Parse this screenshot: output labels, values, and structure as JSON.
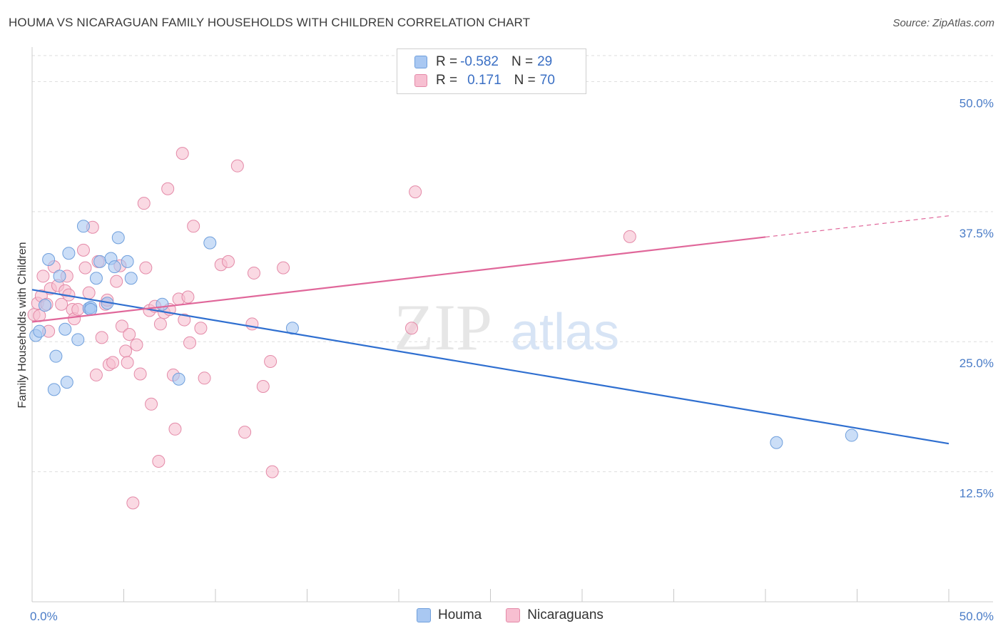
{
  "title": "HOUMA VS NICARAGUAN FAMILY HOUSEHOLDS WITH CHILDREN CORRELATION CHART",
  "source": "Source: ZipAtlas.com",
  "watermark": {
    "part1": "ZIP",
    "part2": "atlas"
  },
  "legend": {
    "r_label": "R =",
    "n_label": "N =",
    "rows": [
      {
        "r": "-0.582",
        "n": "29",
        "color": "#a9c8f2",
        "border": "#6f9fdc"
      },
      {
        "r": "0.171",
        "n": "70",
        "color": "#f7bfd1",
        "border": "#e48aa8"
      }
    ]
  },
  "bottom_legend": [
    "Houma",
    "Nicaraguans"
  ],
  "chart_data": {
    "type": "scatter",
    "title": "HOUMA VS NICARAGUAN FAMILY HOUSEHOLDS WITH CHILDREN CORRELATION CHART",
    "xlabel": "",
    "ylabel": "Family Households with Children",
    "xlim": [
      0,
      50
    ],
    "ylim": [
      0,
      52.5
    ],
    "x_tick_labels": [
      "0.0%",
      "50.0%"
    ],
    "y_ticks": [
      12.5,
      25.0,
      37.5,
      50.0
    ],
    "y_tick_labels": [
      "12.5%",
      "25.0%",
      "37.5%",
      "50.0%"
    ],
    "grid": true,
    "series": [
      {
        "name": "Houma",
        "color": "#a9c8f2",
        "edge": "#6f9fdc",
        "line_color": "#2f6fd0",
        "trend": {
          "x0": 0,
          "y0": 30.0,
          "x1": 50,
          "y1": 15.2,
          "solid_until": 50
        },
        "points": [
          [
            0.2,
            25.6
          ],
          [
            0.4,
            26.0
          ],
          [
            0.7,
            28.5
          ],
          [
            0.9,
            32.9
          ],
          [
            1.3,
            23.6
          ],
          [
            1.5,
            31.3
          ],
          [
            1.8,
            26.2
          ],
          [
            1.9,
            21.1
          ],
          [
            2.0,
            33.5
          ],
          [
            2.5,
            25.2
          ],
          [
            2.8,
            36.1
          ],
          [
            3.1,
            28.2
          ],
          [
            3.2,
            28.3
          ],
          [
            3.5,
            31.1
          ],
          [
            3.7,
            32.7
          ],
          [
            4.1,
            28.7
          ],
          [
            4.3,
            33.0
          ],
          [
            4.5,
            32.2
          ],
          [
            4.7,
            35.0
          ],
          [
            5.2,
            32.7
          ],
          [
            5.4,
            31.1
          ],
          [
            7.1,
            28.6
          ],
          [
            8.0,
            21.4
          ],
          [
            9.7,
            34.5
          ],
          [
            14.2,
            26.3
          ],
          [
            40.6,
            15.3
          ],
          [
            44.7,
            16.0
          ],
          [
            1.2,
            20.4
          ],
          [
            3.2,
            28.1
          ]
        ]
      },
      {
        "name": "Nicaraguans",
        "color": "#f7bfd1",
        "edge": "#e48aa8",
        "line_color": "#e0679a",
        "trend": {
          "x0": 0,
          "y0": 26.9,
          "x1": 50,
          "y1": 37.1,
          "solid_until": 40
        },
        "points": [
          [
            0.1,
            27.6
          ],
          [
            0.3,
            28.7
          ],
          [
            0.5,
            29.4
          ],
          [
            0.6,
            31.3
          ],
          [
            0.8,
            28.6
          ],
          [
            0.9,
            26.0
          ],
          [
            1.0,
            30.1
          ],
          [
            1.2,
            32.2
          ],
          [
            1.4,
            30.4
          ],
          [
            1.6,
            28.6
          ],
          [
            1.8,
            29.9
          ],
          [
            1.9,
            31.3
          ],
          [
            2.0,
            29.5
          ],
          [
            2.2,
            28.1
          ],
          [
            2.3,
            27.2
          ],
          [
            2.5,
            28.1
          ],
          [
            2.8,
            33.8
          ],
          [
            2.9,
            32.1
          ],
          [
            3.1,
            29.7
          ],
          [
            3.3,
            36.0
          ],
          [
            3.5,
            21.8
          ],
          [
            3.6,
            32.7
          ],
          [
            3.8,
            25.4
          ],
          [
            4.0,
            28.6
          ],
          [
            4.1,
            29.0
          ],
          [
            4.2,
            22.8
          ],
          [
            4.4,
            23.0
          ],
          [
            4.6,
            30.8
          ],
          [
            4.8,
            32.3
          ],
          [
            4.9,
            26.5
          ],
          [
            5.1,
            24.1
          ],
          [
            5.2,
            23.0
          ],
          [
            5.3,
            25.7
          ],
          [
            5.5,
            9.5
          ],
          [
            5.7,
            24.7
          ],
          [
            5.9,
            21.9
          ],
          [
            6.1,
            38.3
          ],
          [
            6.2,
            32.1
          ],
          [
            6.4,
            28.0
          ],
          [
            6.5,
            19.0
          ],
          [
            6.7,
            28.4
          ],
          [
            6.9,
            13.5
          ],
          [
            7.0,
            26.7
          ],
          [
            7.2,
            27.8
          ],
          [
            7.4,
            39.7
          ],
          [
            7.5,
            28.1
          ],
          [
            7.7,
            21.8
          ],
          [
            7.8,
            16.6
          ],
          [
            8.0,
            29.1
          ],
          [
            8.2,
            43.1
          ],
          [
            8.3,
            27.1
          ],
          [
            8.5,
            29.3
          ],
          [
            8.6,
            24.9
          ],
          [
            8.8,
            36.1
          ],
          [
            9.2,
            26.3
          ],
          [
            9.4,
            21.5
          ],
          [
            10.3,
            32.4
          ],
          [
            10.7,
            32.7
          ],
          [
            11.2,
            41.9
          ],
          [
            11.6,
            16.3
          ],
          [
            12.0,
            26.7
          ],
          [
            12.1,
            31.6
          ],
          [
            12.6,
            20.7
          ],
          [
            13.0,
            23.1
          ],
          [
            13.1,
            12.5
          ],
          [
            13.7,
            32.1
          ],
          [
            20.7,
            26.3
          ],
          [
            20.9,
            39.4
          ],
          [
            32.6,
            35.1
          ],
          [
            0.4,
            27.5
          ]
        ]
      }
    ]
  }
}
